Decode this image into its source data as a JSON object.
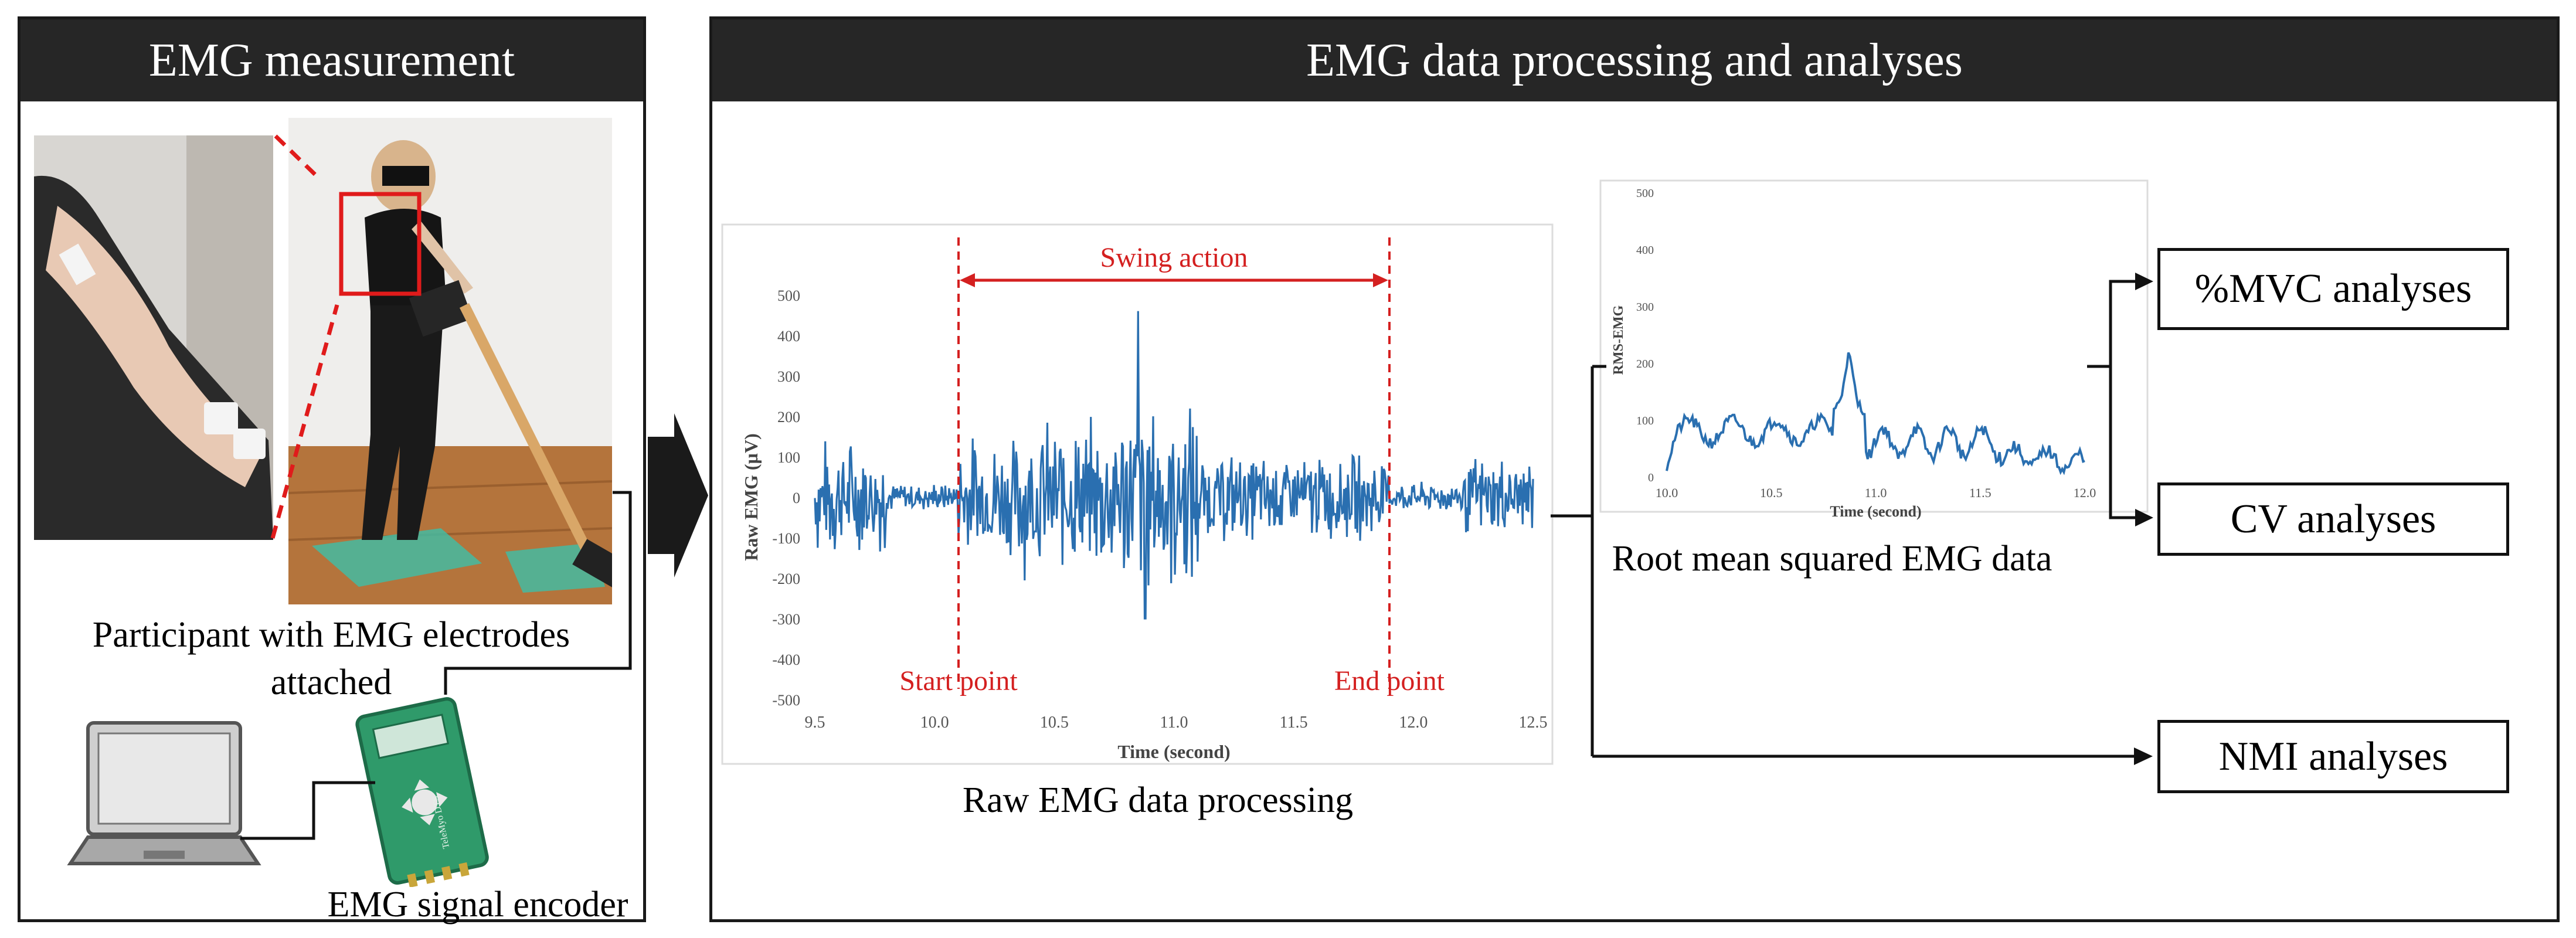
{
  "left_panel": {
    "title": "EMG measurement",
    "participant_caption": "Participant with EMG electrodes attached",
    "encoder_caption": "EMG signal encoder",
    "device_label": "TeleMyo DTS"
  },
  "right_panel": {
    "title": "EMG data processing and analyses",
    "raw_caption": "Raw EMG data processing",
    "rms_caption": "Root mean squared EMG data"
  },
  "raw_chart": {
    "swing_label": "Swing action",
    "start_label": "Start point",
    "end_label": "End point",
    "ylabel": "Raw EMG (µV)",
    "xlabel": "Time (second)",
    "ylim": [
      -500,
      500
    ],
    "xlim": [
      9.5,
      12.5
    ],
    "yticks": [
      "500",
      "400",
      "300",
      "200",
      "100",
      "0",
      "-100",
      "-200",
      "-300",
      "-400",
      "-500"
    ],
    "xticks": [
      "9.5",
      "10.0",
      "10.5",
      "11.0",
      "11.5",
      "12.0",
      "12.5"
    ],
    "start_time": 10.1,
    "end_time": 11.9
  },
  "rms_chart": {
    "ylabel": "RMS-EMG",
    "xlabel": "Time (second)",
    "ylim": [
      0,
      500
    ],
    "xlim": [
      10.0,
      12.0
    ],
    "yticks": [
      "500",
      "400",
      "300",
      "200",
      "100",
      "0"
    ],
    "xticks": [
      "10.0",
      "10.5",
      "11.0",
      "11.5",
      "12.0"
    ]
  },
  "analyses": {
    "mvc": "%MVC analyses",
    "cv": "CV analyses",
    "nmi": "NMI analyses"
  },
  "colors": {
    "header_bg": "#262626",
    "signal": "#2a6fb0",
    "annotation": "#d42020"
  }
}
